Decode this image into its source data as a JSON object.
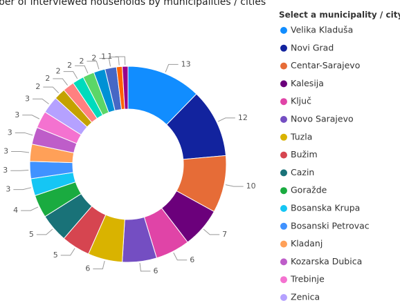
{
  "chart_data": {
    "type": "donut",
    "title": "ber of interviewed households by municipalities / cities",
    "legend_title": "Select a municipality / city",
    "categories": [
      "Velika Kladuša",
      "Novi Grad",
      "Centar-Sarajevo",
      "Kalesija",
      "Ključ",
      "Novo Sarajevo",
      "Tuzla",
      "Bužim",
      "Cazin",
      "Goražde",
      "Bosanska Krupa",
      "Bosanski Petrovac",
      "Kladanj",
      "Kozarska Dubica",
      "Trebinje",
      "Zenica",
      null,
      null,
      null,
      null,
      null,
      null,
      null,
      null
    ],
    "values": [
      13,
      12,
      10,
      7,
      6,
      6,
      6,
      5,
      5,
      4,
      3,
      3,
      3,
      3,
      3,
      3,
      2,
      2,
      2,
      2,
      2,
      2,
      1,
      1
    ],
    "colors": [
      "#118DFF",
      "#12239E",
      "#E66C37",
      "#6B007B",
      "#E044A7",
      "#744EC2",
      "#D9B300",
      "#D64550",
      "#197278",
      "#1AAB40",
      "#15C6F4",
      "#4092FF",
      "#FFA058",
      "#BE5DC9",
      "#F472D0",
      "#B5A1FF",
      "#C4A200",
      "#FF8080",
      "#00DBBC",
      "#5BD667",
      "#0091D5",
      "#4668C5",
      "#FF6300",
      "#99008A"
    ],
    "legend": "right"
  }
}
